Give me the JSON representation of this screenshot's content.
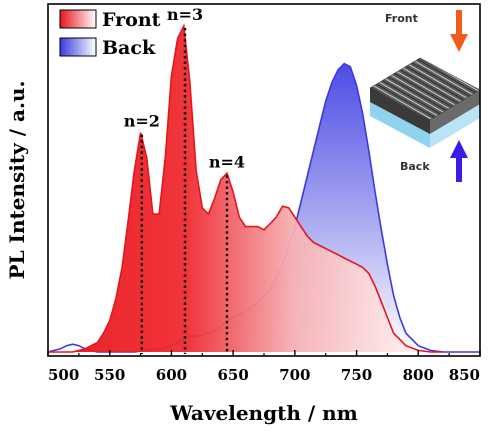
{
  "chart_data": {
    "type": "area",
    "xlabel": "Wavelength / nm",
    "ylabel": "PL Intensity / a.u.",
    "xlim": [
      500,
      850
    ],
    "ylim": [
      0,
      1.08
    ],
    "x_ticks": [
      500,
      550,
      600,
      650,
      700,
      750,
      800,
      850
    ],
    "x_tick_labels": [
      "500",
      "550",
      "600",
      "650",
      "700",
      "750",
      "800",
      "850"
    ],
    "y_ticks_shown": false,
    "legend": {
      "placement": "top-left"
    },
    "series": [
      {
        "name": "Front",
        "color": "#e8141c",
        "gradient_end": "#ffffff",
        "x": [
          500,
          510,
          520,
          530,
          540,
          545,
          550,
          555,
          560,
          565,
          570,
          575,
          580,
          585,
          590,
          595,
          600,
          605,
          610,
          615,
          620,
          625,
          630,
          635,
          640,
          645,
          650,
          655,
          660,
          665,
          670,
          675,
          680,
          685,
          690,
          695,
          700,
          705,
          710,
          715,
          720,
          725,
          730,
          735,
          740,
          745,
          750,
          755,
          760,
          765,
          770,
          775,
          780,
          790,
          800,
          810,
          820
        ],
        "values": [
          0,
          0,
          0,
          0.01,
          0.03,
          0.06,
          0.1,
          0.17,
          0.27,
          0.42,
          0.58,
          0.7,
          0.62,
          0.44,
          0.44,
          0.62,
          0.88,
          1.0,
          1.04,
          0.86,
          0.58,
          0.46,
          0.44,
          0.49,
          0.55,
          0.57,
          0.51,
          0.43,
          0.4,
          0.4,
          0.4,
          0.39,
          0.41,
          0.43,
          0.465,
          0.46,
          0.43,
          0.4,
          0.37,
          0.35,
          0.34,
          0.33,
          0.32,
          0.31,
          0.3,
          0.29,
          0.28,
          0.27,
          0.25,
          0.21,
          0.16,
          0.11,
          0.06,
          0.02,
          0.005,
          0,
          0
        ]
      },
      {
        "name": "Back",
        "color": "#3a3ae0",
        "gradient_end": "#ffffff",
        "x": [
          500,
          505,
          510,
          515,
          520,
          525,
          530,
          540,
          550,
          560,
          570,
          580,
          590,
          600,
          605,
          610,
          615,
          620,
          630,
          640,
          645,
          650,
          660,
          670,
          680,
          690,
          700,
          710,
          720,
          725,
          730,
          735,
          740,
          745,
          750,
          755,
          760,
          765,
          770,
          775,
          780,
          785,
          790,
          800,
          810,
          820,
          830,
          850
        ],
        "values": [
          0,
          0.005,
          0.01,
          0.02,
          0.025,
          0.02,
          0.01,
          0,
          0,
          0,
          0,
          0.005,
          0.01,
          0.02,
          0.03,
          0.04,
          0.05,
          0.05,
          0.06,
          0.08,
          0.1,
          0.11,
          0.13,
          0.16,
          0.2,
          0.28,
          0.4,
          0.56,
          0.72,
          0.8,
          0.86,
          0.9,
          0.92,
          0.91,
          0.85,
          0.76,
          0.64,
          0.51,
          0.39,
          0.28,
          0.18,
          0.11,
          0.06,
          0.02,
          0.005,
          0,
          0,
          0
        ]
      }
    ],
    "peak_markers": [
      {
        "label": "n=2",
        "x": 576,
        "y": 0.7
      },
      {
        "label": "n=3",
        "x": 611,
        "y": 1.04
      },
      {
        "label": "n=4",
        "x": 645,
        "y": 0.57
      }
    ]
  },
  "inset": {
    "top_label": "Front",
    "bottom_label": "Back",
    "front_arrow_color": "#f25a1c",
    "back_arrow_color": "#3a1ce8",
    "substrate_color": "#8fd3ef"
  }
}
